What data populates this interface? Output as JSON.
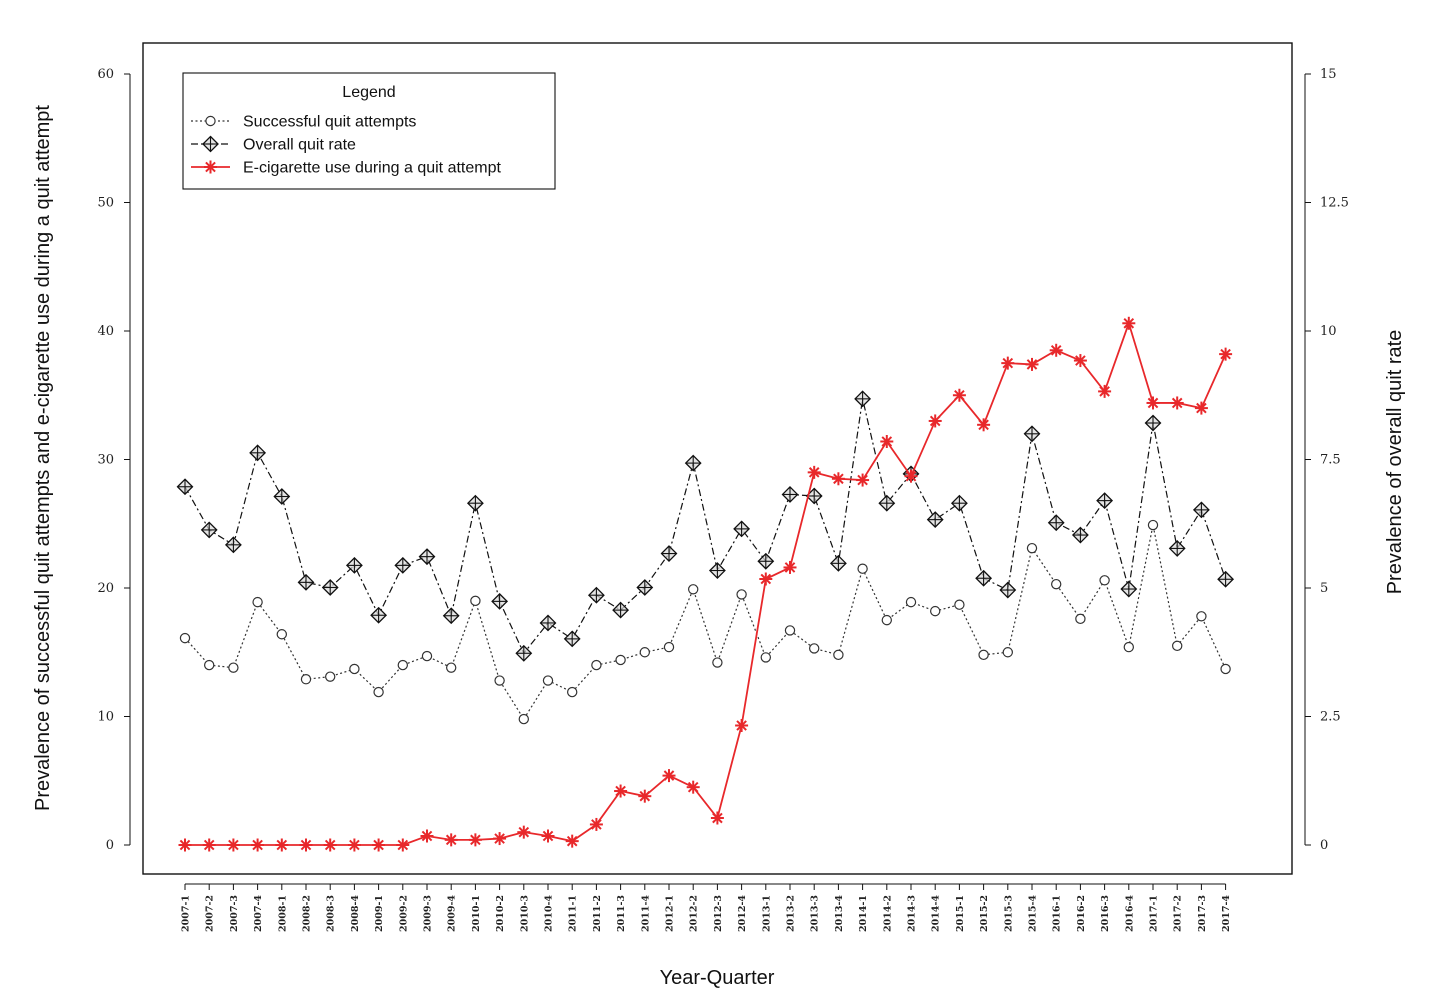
{
  "chart_data": {
    "type": "line",
    "xlabel": "Year-Quarter",
    "ylabel_left": "Prevalence of successful quit attempts and e-cigarette use during a quit attempt",
    "ylabel_right": "Prevalence of overall quit rate",
    "ylim_left": [
      0,
      60
    ],
    "yticks_left": [
      "0",
      "10",
      "20",
      "30",
      "40",
      "50",
      "60"
    ],
    "ylim_right": [
      0,
      15
    ],
    "yticks_right": [
      "0",
      "2.5",
      "5",
      "7.5",
      "10",
      "12.5",
      "15"
    ],
    "grid": false,
    "legend": {
      "title": "Legend",
      "placement": "top-left",
      "entries": [
        "Successful quit attempts",
        "Overall quit rate",
        "E-cigarette use during a quit attempt"
      ]
    },
    "categories": [
      "2007-1",
      "2007-2",
      "2007-3",
      "2007-4",
      "2008-1",
      "2008-2",
      "2008-3",
      "2008-4",
      "2009-1",
      "2009-2",
      "2009-3",
      "2009-4",
      "2010-1",
      "2010-2",
      "2010-3",
      "2010-4",
      "2011-1",
      "2011-2",
      "2011-3",
      "2011-4",
      "2012-1",
      "2012-2",
      "2012-3",
      "2012-4",
      "2013-1",
      "2013-2",
      "2013-3",
      "2013-4",
      "2014-1",
      "2014-2",
      "2014-3",
      "2014-4",
      "2015-1",
      "2015-2",
      "2015-3",
      "2015-4",
      "2016-1",
      "2016-2",
      "2016-3",
      "2016-4",
      "2017-1",
      "2017-2",
      "2017-3",
      "2017-4"
    ],
    "series": [
      {
        "name": "Successful quit attempts",
        "axis": "left",
        "style": "dotted",
        "marker": "circle",
        "color": "#333333",
        "values": [
          16.1,
          14.0,
          13.8,
          18.9,
          16.4,
          12.9,
          13.1,
          13.7,
          11.9,
          14.0,
          14.7,
          13.8,
          19.0,
          12.8,
          9.8,
          12.8,
          11.9,
          14.0,
          14.4,
          15.0,
          15.4,
          19.9,
          14.2,
          19.5,
          14.6,
          16.7,
          15.3,
          14.8,
          21.5,
          17.5,
          18.9,
          18.2,
          18.7,
          14.8,
          15.0,
          23.1,
          20.3,
          17.6,
          20.6,
          15.4,
          24.9,
          15.5,
          17.8,
          13.7
        ]
      },
      {
        "name": "Overall quit rate",
        "axis": "right",
        "style": "dash-dot",
        "marker": "diamond-plus",
        "color": "#111111",
        "values": [
          6.97,
          6.13,
          5.84,
          7.63,
          6.78,
          5.11,
          5.01,
          5.44,
          4.47,
          5.44,
          5.61,
          4.46,
          6.65,
          4.74,
          3.73,
          4.32,
          4.01,
          4.86,
          4.57,
          5.01,
          5.67,
          7.43,
          5.34,
          6.15,
          5.52,
          6.82,
          6.79,
          5.48,
          8.68,
          6.65,
          7.22,
          6.33,
          6.65,
          5.19,
          4.96,
          8.0,
          6.27,
          6.03,
          6.7,
          4.98,
          8.21,
          5.77,
          6.52,
          5.17
        ]
      },
      {
        "name": "E-cigarette use during a quit attempt",
        "axis": "left",
        "style": "solid",
        "marker": "asterisk",
        "color": "#e8282b",
        "values": [
          0,
          0,
          0,
          0,
          0,
          0,
          0,
          0,
          0,
          0,
          0.7,
          0.4,
          0.4,
          0.5,
          1.0,
          0.7,
          0.3,
          1.6,
          4.2,
          3.8,
          5.4,
          4.5,
          2.1,
          9.3,
          20.7,
          21.6,
          29.0,
          28.5,
          28.4,
          31.4,
          28.7,
          33.0,
          35.0,
          32.7,
          37.5,
          37.4,
          38.5,
          37.7,
          35.3,
          40.6,
          34.4,
          34.4,
          34.0,
          38.2
        ]
      }
    ]
  }
}
